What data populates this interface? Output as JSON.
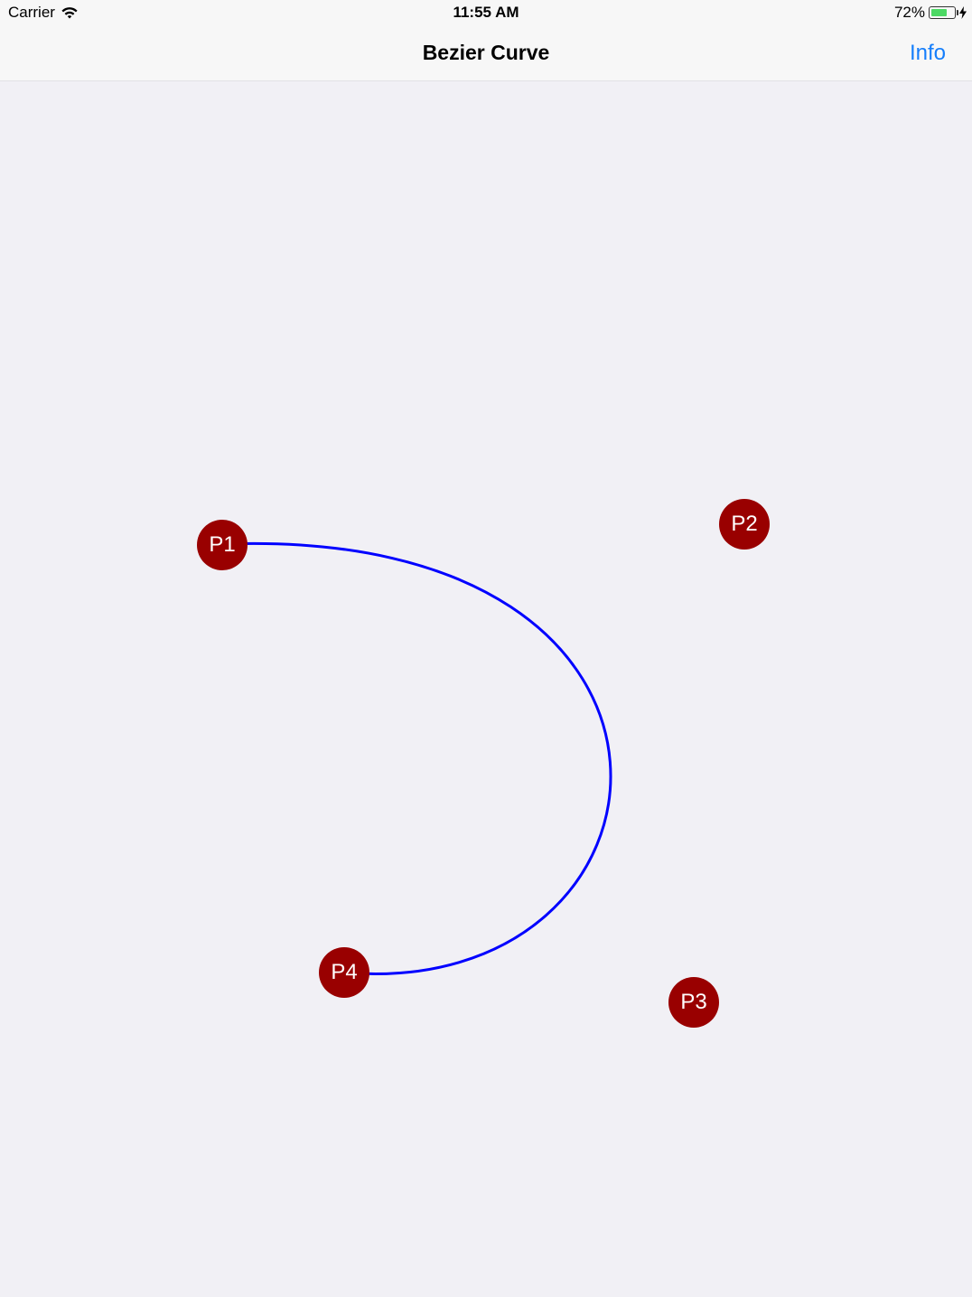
{
  "status_bar": {
    "carrier": "Carrier",
    "time": "11:55 AM",
    "battery_percent_label": "72%",
    "battery_level": 0.72,
    "icons": [
      "wifi-icon",
      "battery-icon",
      "charging-bolt-icon"
    ]
  },
  "nav": {
    "title": "Bezier Curve",
    "info_label": "Info",
    "accent_color": "#157efb"
  },
  "curve": {
    "stroke_color": "#0000ff",
    "handle_color": "#990000"
  },
  "points": [
    {
      "label": "P1"
    },
    {
      "label": "P2"
    },
    {
      "label": "P3"
    },
    {
      "label": "P4"
    }
  ]
}
